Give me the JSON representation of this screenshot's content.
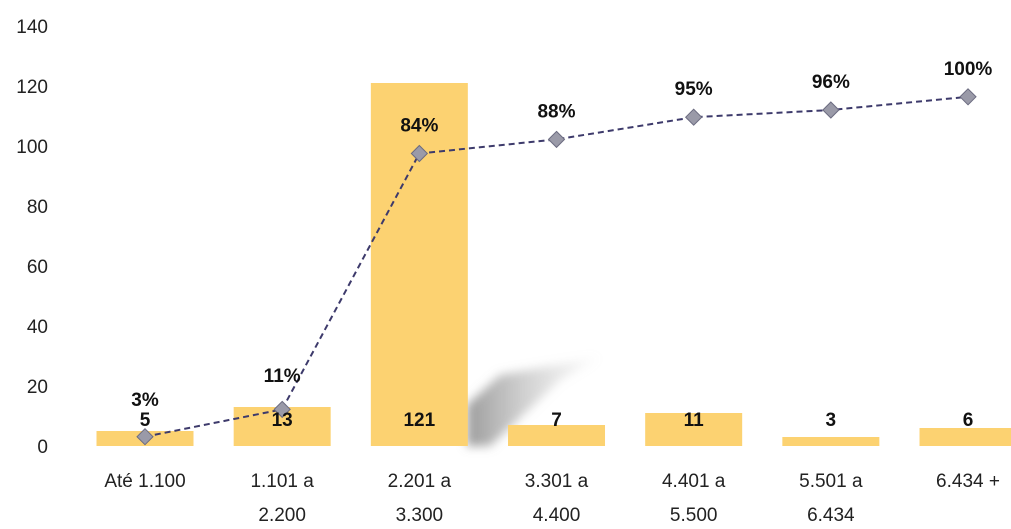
{
  "chart_data": {
    "type": "bar",
    "title": "",
    "xlabel": "",
    "ylabel": "",
    "ylim": [
      0,
      140
    ],
    "yticks": [
      0,
      20,
      40,
      60,
      80,
      100,
      120,
      140
    ],
    "grid": false,
    "categories": [
      [
        "Até 1.100"
      ],
      [
        "1.101 a",
        "2.200"
      ],
      [
        "2.201 a",
        "3.300"
      ],
      [
        "3.301 a",
        "4.400"
      ],
      [
        "4.401 a",
        "5.500"
      ],
      [
        "5.501 a",
        "6.434"
      ],
      [
        "6.434 +"
      ]
    ],
    "series": [
      {
        "type": "bar",
        "values": [
          5,
          13,
          121,
          7,
          11,
          3,
          6
        ],
        "data_labels": [
          "5",
          "13",
          "121",
          "7",
          "11",
          "3",
          "6"
        ],
        "color": "#FCD271"
      },
      {
        "type": "line",
        "values": [
          3.1,
          12.2,
          97.5,
          102.2,
          109.6,
          112.0,
          116.4
        ],
        "data_labels": [
          "3%",
          "11%",
          "84%",
          "88%",
          "95%",
          "96%",
          "100%"
        ],
        "color": "#3D3A6B",
        "marker_color": "#9A9AA8",
        "line_style": "dashed",
        "marker": "diamond"
      }
    ]
  }
}
